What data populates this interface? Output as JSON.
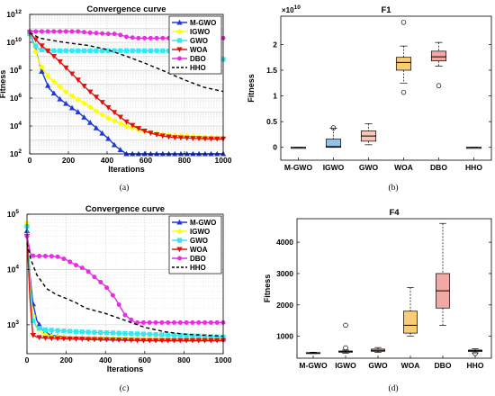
{
  "figure": {
    "captions": [
      "(a)",
      "(b)",
      "(c)",
      "(d)"
    ],
    "colors": {
      "M-GWO": "#1f38d6",
      "IGWO": "#ffff00",
      "GWO": "#35e8f0",
      "WOA": "#e0120e",
      "DBO": "#e62fe0",
      "HHO": "#000000",
      "box_gwo": "#f6c7b5",
      "box_igwo": "#8fc4e7",
      "box_woa": "#f8cd76",
      "box_dbo": "#f2a8a3",
      "box_hho": "#e2eaa9"
    }
  },
  "chart_data": [
    {
      "type": "line",
      "panel": "a",
      "title": "Convergence curve",
      "xlabel": "Iterations",
      "ylabel": "Fitness",
      "xlim": [
        0,
        1000
      ],
      "ylim": [
        100,
        1000000000000
      ],
      "yscale": "log",
      "grid": true,
      "legend_position": "top-right",
      "xticks": [
        "0",
        "200",
        "400",
        "600",
        "800",
        "1000"
      ],
      "yticks": [
        {
          "v": 100,
          "b": "10",
          "e": "2"
        },
        {
          "v": 10000,
          "b": "10",
          "e": "4"
        },
        {
          "v": 1000000,
          "b": "10",
          "e": "6"
        },
        {
          "v": 100000000,
          "b": "10",
          "e": "8"
        },
        {
          "v": 10000000000,
          "b": "10",
          "e": "10"
        },
        {
          "v": 1000000000000,
          "b": "10",
          "e": "12"
        }
      ],
      "series": [
        {
          "name": "M-GWO",
          "color": "#1f38d6",
          "marker": "triangle-up",
          "dash": "",
          "x": [
            0,
            30,
            60,
            100,
            150,
            200,
            250,
            300,
            350,
            400,
            450,
            500,
            550,
            600,
            650,
            700,
            750,
            800,
            850,
            900,
            950,
            1000
          ],
          "y": [
            60000000000,
            3000000000,
            100000000,
            5000000,
            1000000,
            300000,
            100000,
            25000,
            6000,
            1500,
            300,
            100,
            100,
            100,
            100,
            100,
            100,
            100,
            100,
            100,
            100,
            100
          ]
        },
        {
          "name": "IGWO",
          "color": "#ffff00",
          "marker": "diamond",
          "dash": "",
          "x": [
            0,
            50,
            100,
            150,
            200,
            250,
            300,
            350,
            400,
            450,
            500,
            550,
            600,
            650,
            700,
            750,
            800,
            850,
            900,
            950,
            1000
          ],
          "y": [
            50000000000,
            300000000,
            30000000,
            8000000,
            2000000,
            800000,
            300000,
            100000,
            40000,
            20000,
            10000,
            6000,
            4000,
            3000,
            2500,
            2200,
            2000,
            1800,
            1600,
            1500,
            1400
          ]
        },
        {
          "name": "GWO",
          "color": "#35e8f0",
          "marker": "square",
          "dash": "",
          "x": [
            0,
            20,
            50,
            100,
            200,
            300,
            400,
            500,
            600,
            700,
            800,
            900,
            950,
            1000
          ],
          "y": [
            40000000000,
            8000000000,
            3000000000,
            2500000000,
            2500000000,
            2500000000,
            2500000000,
            2500000000,
            2500000000,
            2500000000,
            2000000000,
            2000000000,
            2000000000,
            600000000
          ]
        },
        {
          "name": "WOA",
          "color": "#e0120e",
          "marker": "triangle-down",
          "dash": "",
          "x": [
            0,
            50,
            100,
            150,
            200,
            250,
            300,
            350,
            400,
            450,
            500,
            550,
            600,
            650,
            700,
            750,
            800,
            850,
            900,
            950,
            1000
          ],
          "y": [
            50000000000,
            8000000000,
            2000000000,
            500000000,
            100000000,
            20000000,
            4000000,
            1000000,
            250000,
            70000,
            20000,
            8000,
            4000,
            2500,
            1800,
            1500,
            1400,
            1300,
            1250,
            1200,
            1200
          ]
        },
        {
          "name": "DBO",
          "color": "#e62fe0",
          "marker": "circle",
          "dash": "",
          "x": [
            0,
            50,
            100,
            150,
            200,
            250,
            300,
            350,
            400,
            450,
            500,
            550,
            600,
            700,
            800,
            900,
            1000
          ],
          "y": [
            60000000000,
            60000000000,
            60000000000,
            60000000000,
            60000000000,
            60000000000,
            50000000000,
            45000000000,
            40000000000,
            40000000000,
            25000000000,
            20000000000,
            20000000000,
            20000000000,
            20000000000,
            20000000000,
            20000000000
          ]
        },
        {
          "name": "HHO",
          "color": "#000000",
          "marker": "",
          "dash": "4,3",
          "x": [
            0,
            50,
            100,
            200,
            300,
            400,
            500,
            600,
            700,
            800,
            900,
            1000
          ],
          "y": [
            50000000000,
            20000000000,
            15000000000,
            9000000000,
            6000000000,
            3000000000,
            1000000000,
            300000000,
            80000000,
            20000000,
            6000000,
            3000000
          ]
        }
      ]
    },
    {
      "type": "box",
      "panel": "b",
      "title": "F1",
      "ylabel": "Fitness",
      "ylim": [
        -2500000000,
        25500000000
      ],
      "yscale_label": "×10",
      "yscale_exp": "10",
      "yticks": [
        {
          "v": 0,
          "t": "0"
        },
        {
          "v": 5000000000,
          "t": "0.5"
        },
        {
          "v": 10000000000,
          "t": "1"
        },
        {
          "v": 15000000000,
          "t": "1.5"
        },
        {
          "v": 20000000000,
          "t": "2"
        }
      ],
      "categories": [
        "M-GWO",
        "IGWO",
        "GWO",
        "WOA",
        "DBO",
        "HHO"
      ],
      "boxes": [
        {
          "min": 0,
          "q1": 0,
          "median": 0,
          "q3": 0,
          "max": 0,
          "outliers": [],
          "fill": "#ffffff"
        },
        {
          "min": 0,
          "q1": 0,
          "median": 150000000,
          "q3": 1600000000,
          "max": 3700000000,
          "outliers": [
            3800000000
          ],
          "fill": "#8fc4e7"
        },
        {
          "min": 500000000,
          "q1": 1200000000,
          "median": 2200000000,
          "q3": 3200000000,
          "max": 4600000000,
          "outliers": [],
          "fill": "#f6c7b5"
        },
        {
          "min": 12500000000,
          "q1": 15000000000,
          "median": 16500000000,
          "q3": 17500000000,
          "max": 19700000000,
          "outliers": [
            10700000000,
            24300000000
          ],
          "fill": "#f8cd76"
        },
        {
          "min": 15800000000,
          "q1": 16800000000,
          "median": 17600000000,
          "q3": 18700000000,
          "max": 20400000000,
          "outliers": [
            12000000000
          ],
          "fill": "#f2a8a3"
        },
        {
          "min": 0,
          "q1": 0,
          "median": 0,
          "q3": 0,
          "max": 0,
          "outliers": [],
          "fill": "#ffffff"
        }
      ]
    },
    {
      "type": "line",
      "panel": "c",
      "title": "Convergence curve",
      "xlabel": "Iterations",
      "ylabel": "",
      "xlim": [
        0,
        1000
      ],
      "ylim": [
        300,
        100000
      ],
      "yscale": "log",
      "grid": true,
      "legend_position": "top-right",
      "xticks": [
        "0",
        "200",
        "400",
        "600",
        "800",
        "1000"
      ],
      "yticks": [
        {
          "v": 1000,
          "b": "10",
          "e": "3"
        },
        {
          "v": 10000,
          "b": "10",
          "e": "4"
        },
        {
          "v": 100000,
          "b": "10",
          "e": "5"
        }
      ],
      "series": [
        {
          "name": "M-GWO",
          "color": "#1f38d6",
          "marker": "triangle-up",
          "dash": "",
          "x": [
            0,
            15,
            30,
            50,
            80,
            120,
            200,
            300,
            400,
            500,
            600,
            700,
            800,
            900,
            1000
          ],
          "y": [
            50000,
            8000,
            2500,
            1200,
            800,
            650,
            600,
            580,
            570,
            560,
            555,
            550,
            550,
            550,
            550
          ]
        },
        {
          "name": "IGWO",
          "color": "#ffff00",
          "marker": "diamond",
          "dash": "",
          "x": [
            0,
            15,
            30,
            50,
            80,
            120,
            200,
            300,
            400,
            500,
            600,
            700,
            800,
            900,
            1000
          ],
          "y": [
            70000,
            6000,
            1500,
            900,
            700,
            620,
            590,
            570,
            560,
            555,
            550,
            550,
            550,
            550,
            550
          ]
        },
        {
          "name": "GWO",
          "color": "#35e8f0",
          "marker": "square",
          "dash": "",
          "x": [
            0,
            15,
            30,
            50,
            80,
            120,
            200,
            300,
            400,
            500,
            600,
            700,
            800,
            900,
            1000
          ],
          "y": [
            60000,
            5000,
            1200,
            900,
            820,
            800,
            770,
            740,
            720,
            700,
            680,
            660,
            640,
            620,
            600
          ]
        },
        {
          "name": "WOA",
          "color": "#e0120e",
          "marker": "triangle-down",
          "dash": "",
          "x": [
            0,
            15,
            30,
            50,
            80,
            120,
            200,
            300,
            400,
            500,
            600,
            700,
            800,
            900,
            1000
          ],
          "y": [
            40000,
            3000,
            650,
            600,
            580,
            570,
            560,
            550,
            540,
            530,
            520,
            520,
            520,
            520,
            520
          ]
        },
        {
          "name": "DBO",
          "color": "#e62fe0",
          "marker": "circle",
          "dash": "",
          "x": [
            0,
            20,
            40,
            80,
            120,
            160,
            200,
            250,
            300,
            350,
            400,
            450,
            500,
            550,
            600,
            700,
            800,
            900,
            1000
          ],
          "y": [
            40000,
            18000,
            17500,
            17500,
            17500,
            17000,
            15000,
            12000,
            10000,
            7000,
            5000,
            3000,
            1500,
            1100,
            1100,
            1100,
            1100,
            1100,
            1100
          ]
        },
        {
          "name": "HHO",
          "color": "#000000",
          "marker": "",
          "dash": "4,3",
          "x": [
            0,
            20,
            50,
            100,
            150,
            200,
            250,
            300,
            400,
            500,
            600,
            700,
            800,
            900,
            1000
          ],
          "y": [
            30000,
            15000,
            8000,
            4500,
            3500,
            3000,
            2500,
            2000,
            1600,
            1200,
            900,
            750,
            680,
            650,
            620
          ]
        }
      ]
    },
    {
      "type": "box",
      "panel": "d",
      "title": "F4",
      "ylabel": "Fitness",
      "ylim": [
        300,
        4750
      ],
      "yticks": [
        {
          "v": 1000,
          "t": "1000"
        },
        {
          "v": 2000,
          "t": "2000"
        },
        {
          "v": 3000,
          "t": "3000"
        },
        {
          "v": 4000,
          "t": "4000"
        }
      ],
      "categories": [
        "M-GWO",
        "IGWO",
        "GWO",
        "WOA",
        "DBO",
        "HHO"
      ],
      "boxes": [
        {
          "min": 450,
          "q1": 460,
          "median": 470,
          "q3": 480,
          "max": 490,
          "outliers": [],
          "fill": "#ffffff"
        },
        {
          "min": 460,
          "q1": 490,
          "median": 510,
          "q3": 530,
          "max": 560,
          "outliers": [
            630,
            1350
          ],
          "fill": "#8fc4e7"
        },
        {
          "min": 490,
          "q1": 520,
          "median": 550,
          "q3": 590,
          "max": 640,
          "outliers": [],
          "fill": "#f6c7b5"
        },
        {
          "min": 1000,
          "q1": 1100,
          "median": 1350,
          "q3": 1800,
          "max": 2550,
          "outliers": [],
          "fill": "#f8cd76"
        },
        {
          "min": 1350,
          "q1": 1900,
          "median": 2450,
          "q3": 3000,
          "max": 4600,
          "outliers": [],
          "fill": "#f2a8a3"
        },
        {
          "min": 470,
          "q1": 510,
          "median": 540,
          "q3": 560,
          "max": 600,
          "outliers": [
            450
          ],
          "fill": "#e2eaa9"
        }
      ]
    }
  ]
}
